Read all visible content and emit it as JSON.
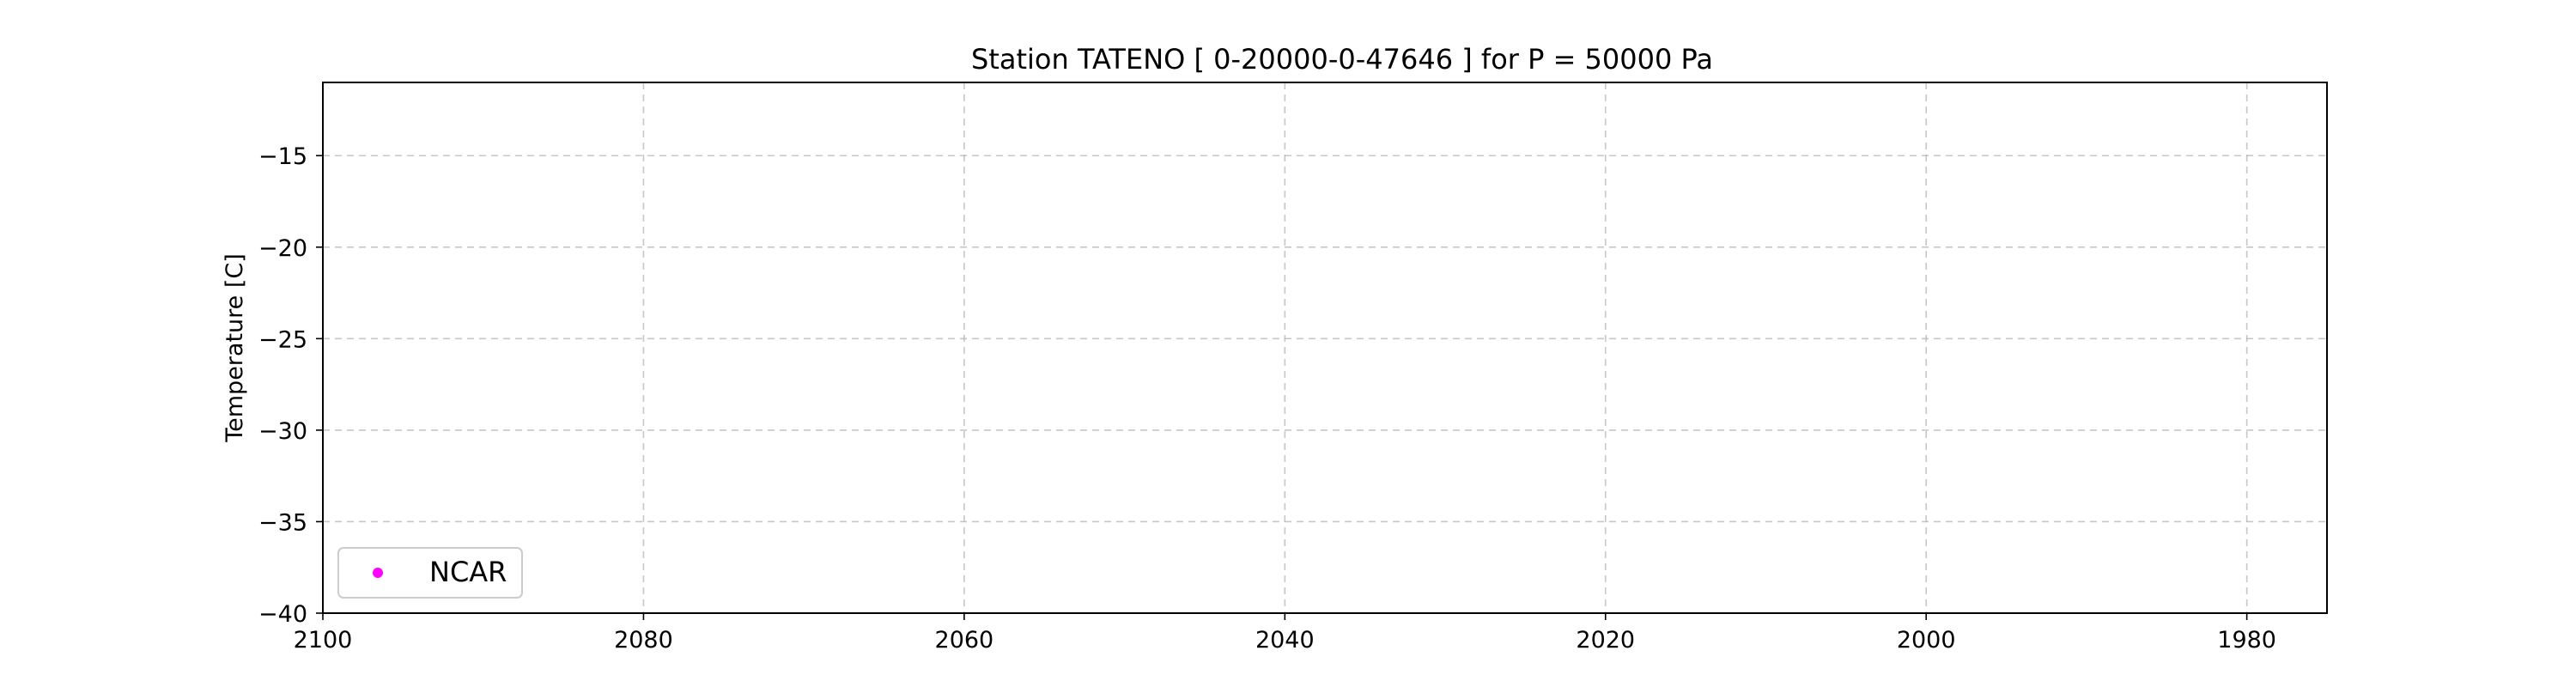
{
  "chart_data": {
    "type": "scatter",
    "title": "Station  TATENO [ 0-20000-0-47646 ]  for P = 50000 Pa",
    "xlabel": "",
    "ylabel": "Temperature [C]",
    "xlim": [
      2100,
      1975
    ],
    "ylim": [
      -40,
      -11
    ],
    "x_ticks": [
      2100,
      2080,
      2060,
      2040,
      2020,
      2000,
      1980
    ],
    "x_tick_labels": [
      "2100",
      "2080",
      "2060",
      "2040",
      "2020",
      "2000",
      "1980"
    ],
    "y_ticks": [
      -15,
      -20,
      -25,
      -30,
      -35,
      -40
    ],
    "y_tick_labels": [
      "−15",
      "−20",
      "−25",
      "−30",
      "−35",
      "−40"
    ],
    "grid": true,
    "legend_position": "lower-left",
    "series": [
      {
        "name": "NCAR",
        "color": "#ff00ff",
        "x": [],
        "y": []
      }
    ]
  }
}
